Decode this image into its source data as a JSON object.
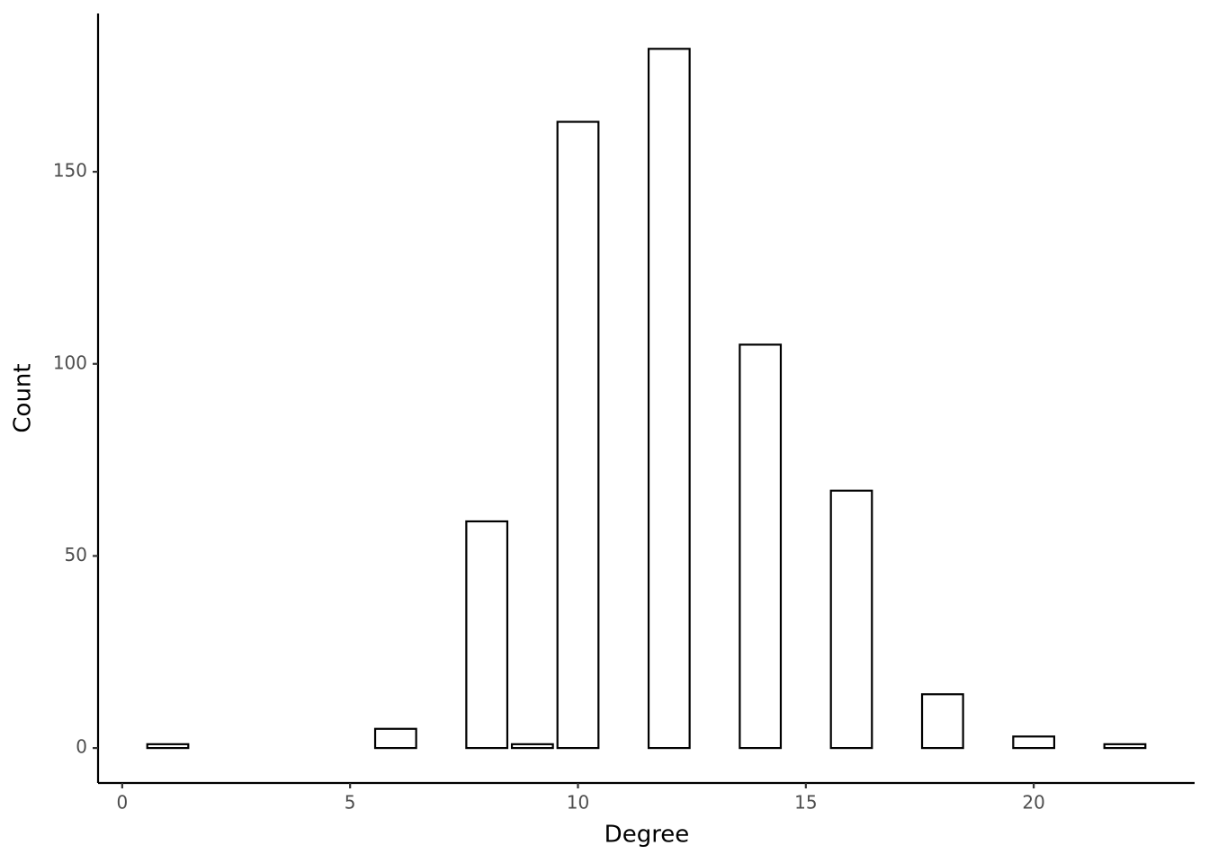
{
  "chart_data": {
    "type": "bar",
    "xlabel": "Degree",
    "ylabel": "Count",
    "x": [
      1,
      6,
      8,
      9,
      10,
      12,
      14,
      16,
      18,
      20,
      22
    ],
    "values": [
      1,
      5,
      59,
      1,
      163,
      182,
      105,
      67,
      14,
      3,
      1
    ],
    "color": "#ffffff",
    "edgecolor": "#000000",
    "xlim": [
      -0.53,
      23.53
    ],
    "xticks": [
      0,
      5,
      10,
      15,
      20
    ],
    "ylim": [
      -9.1,
      191.2
    ],
    "yticks": [
      0,
      50,
      100,
      150
    ],
    "grid": false
  }
}
